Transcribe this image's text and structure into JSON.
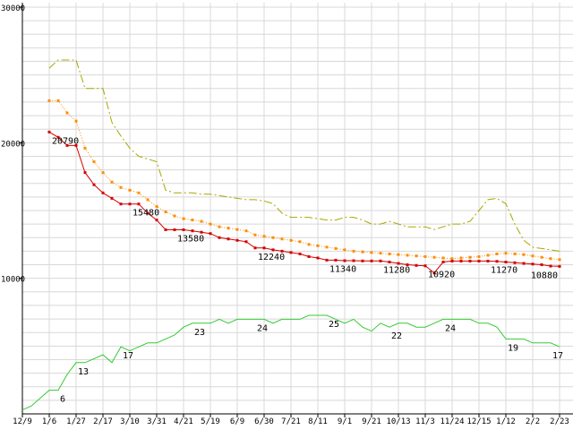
{
  "chart_data": {
    "type": "line",
    "title": "",
    "xlabel": "",
    "ylabel": "",
    "grid": true,
    "legend": "none",
    "x_tick_labels": [
      "12/9",
      "1/6",
      "1/27",
      "2/17",
      "3/10",
      "3/31",
      "4/21",
      "5/19",
      "6/9",
      "6/30",
      "7/21",
      "8/11",
      "9/1",
      "9/21",
      "10/13",
      "11/3",
      "11/24",
      "12/15",
      "1/12",
      "2/2",
      "2/23"
    ],
    "weeks_per_tick": 3,
    "price_axis": {
      "min": 0,
      "max": 30000,
      "minor_step": 1000,
      "ticks": [
        {
          "value": 30000,
          "label": "30000"
        },
        {
          "value": 20000,
          "label": "20000"
        },
        {
          "value": 10000,
          "label": "10000"
        }
      ]
    },
    "count_axis": {
      "min": 0,
      "implied_max": 30
    },
    "colors": {
      "grid": "#d8d8d8",
      "axis": "#000000",
      "highest_price": "#a8a800",
      "average_price": "#ff8c00",
      "lowest_price": "#d40000",
      "shop_count": "#33cc33"
    },
    "series": [
      {
        "name": "highest-price",
        "color": "#a8a800",
        "dash": "9 3 2 3",
        "marker": false,
        "axis": "price",
        "start_week": 3,
        "values": [
          25500,
          26100,
          26100,
          26100,
          24000,
          24000,
          24000,
          21500,
          20500,
          19600,
          19000,
          18800,
          18600,
          16500,
          16300,
          16300,
          16300,
          16200,
          16200,
          16100,
          16000,
          15900,
          15800,
          15800,
          15700,
          15500,
          14800,
          14500,
          14500,
          14500,
          14400,
          14300,
          14300,
          14500,
          14500,
          14300,
          14000,
          14000,
          14200,
          14000,
          13800,
          13800,
          13800,
          13600,
          13800,
          14000,
          14000,
          14200,
          15000,
          15800,
          15900,
          15500,
          14000,
          12800,
          12300,
          12200,
          12100,
          12000
        ]
      },
      {
        "name": "average-price",
        "color": "#ff8c00",
        "dash": "1 2",
        "marker": true,
        "axis": "price",
        "start_week": 3,
        "values": [
          23100,
          23100,
          22200,
          21600,
          19600,
          18600,
          17800,
          17100,
          16700,
          16500,
          16300,
          15800,
          15300,
          14900,
          14600,
          14400,
          14300,
          14200,
          14000,
          13800,
          13700,
          13600,
          13500,
          13200,
          13100,
          13000,
          12900,
          12800,
          12700,
          12500,
          12400,
          12300,
          12200,
          12100,
          12000,
          11950,
          11900,
          11850,
          11800,
          11750,
          11700,
          11650,
          11600,
          11550,
          11500,
          11450,
          11500,
          11550,
          11600,
          11700,
          11800,
          11850,
          11800,
          11750,
          11650,
          11550,
          11450,
          11380
        ]
      },
      {
        "name": "lowest-price",
        "color": "#d40000",
        "dash": "",
        "marker": true,
        "axis": "price",
        "start_week": 3,
        "values": [
          20790,
          20400,
          19800,
          19800,
          17800,
          16900,
          16300,
          15900,
          15480,
          15480,
          15480,
          14800,
          14300,
          13580,
          13580,
          13580,
          13500,
          13400,
          13300,
          13000,
          12900,
          12800,
          12700,
          12240,
          12240,
          12100,
          12000,
          11900,
          11800,
          11600,
          11500,
          11340,
          11340,
          11300,
          11300,
          11280,
          11280,
          11280,
          11200,
          11100,
          11000,
          10950,
          10920,
          10400,
          11200,
          11270,
          11270,
          11270,
          11270,
          11270,
          11250,
          11200,
          11150,
          11100,
          11050,
          11000,
          10900,
          10880
        ]
      },
      {
        "name": "shop-count",
        "color": "#33cc33",
        "dash": "",
        "marker": false,
        "axis": "count",
        "start_week": 0,
        "values": [
          1,
          2,
          4,
          6,
          6,
          10,
          13,
          13,
          14,
          15,
          13,
          17,
          16,
          17,
          18,
          18,
          19,
          20,
          22,
          23,
          23,
          23,
          24,
          23,
          24,
          24,
          24,
          24,
          23,
          24,
          24,
          24,
          25,
          25,
          25,
          24,
          23,
          24,
          22,
          21,
          23,
          22,
          23,
          23,
          22,
          22,
          23,
          24,
          24,
          24,
          24,
          23,
          23,
          22,
          19,
          19,
          19,
          18,
          18,
          18,
          17
        ]
      }
    ],
    "annotations": {
      "price_labels": [
        {
          "text": "20790",
          "week": 3
        },
        {
          "text": "15480",
          "week": 12
        },
        {
          "text": "13580",
          "week": 17
        },
        {
          "text": "12240",
          "week": 26
        },
        {
          "text": "11340",
          "week": 34
        },
        {
          "text": "11280",
          "week": 40
        },
        {
          "text": "10920",
          "week": 45
        },
        {
          "text": "11270",
          "week": 52
        },
        {
          "text": "10880",
          "week": 60
        }
      ],
      "count_labels": [
        {
          "text": "6",
          "week": 4
        },
        {
          "text": "13",
          "week": 6
        },
        {
          "text": "17",
          "week": 11
        },
        {
          "text": "23",
          "week": 19
        },
        {
          "text": "24",
          "week": 26
        },
        {
          "text": "25",
          "week": 34
        },
        {
          "text": "22",
          "week": 41
        },
        {
          "text": "24",
          "week": 47
        },
        {
          "text": "19",
          "week": 54
        },
        {
          "text": "17",
          "week": 60
        }
      ]
    }
  }
}
